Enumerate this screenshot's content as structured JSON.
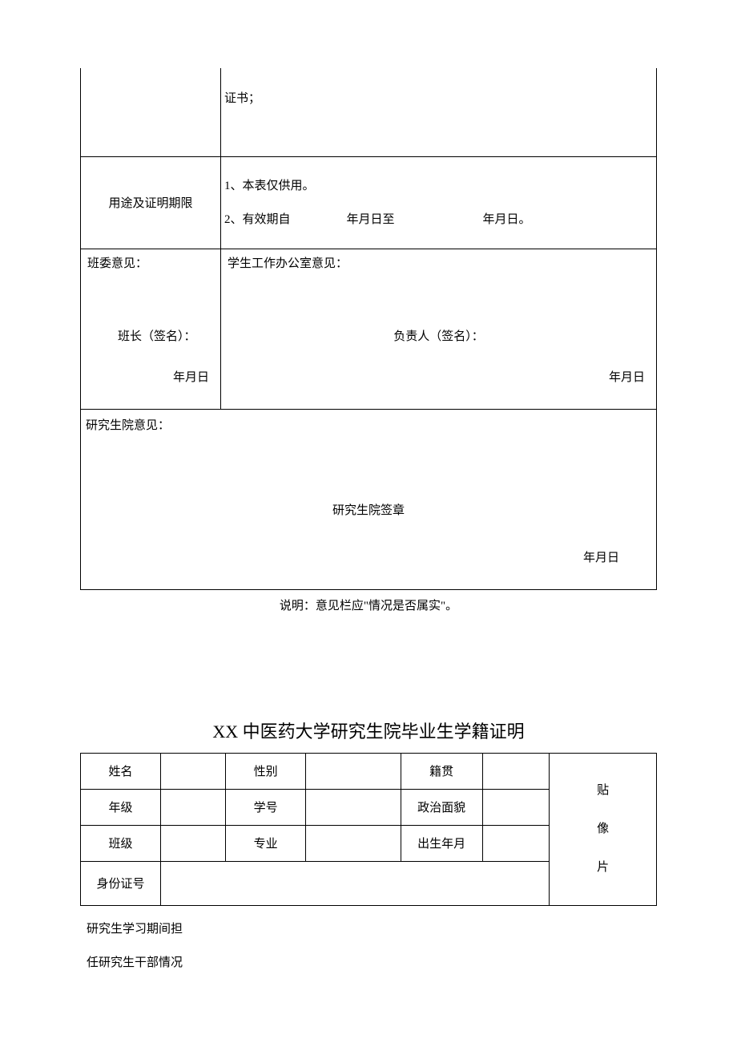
{
  "table1": {
    "row1_label": "",
    "row1_value": "证书；",
    "row2_label": "用途及证明期限",
    "row2_line1": "1、本表仅供用。",
    "row2_line2_a": "2、有效期自",
    "row2_line2_b": "年月日至",
    "row2_line2_c": "年月日。",
    "op_left_title": "班委意见：",
    "op_left_sign": "班长（签名）：",
    "op_left_date": "年月日",
    "op_right_title": "学生工作办公室意见：",
    "op_right_sign": "负责人（签名）：",
    "op_right_date": "年月日",
    "op_full_title": "研究生院意见：",
    "op_full_sign": "研究生院签章",
    "op_full_date": "年月日"
  },
  "note": "说明：意见栏应\"情况是否属实\"。",
  "title2": "XX 中医药大学研究生院毕业生学籍证明",
  "table2": {
    "r1c1": "姓名",
    "r1c2": "",
    "r1c3": "性别",
    "r1c4": "",
    "r1c5": "籍贯",
    "r1c6": "",
    "r2c1": "年级",
    "r2c2": "",
    "r2c3": "学号",
    "r2c4": "",
    "r2c5": "政治面貌",
    "r2c6": "",
    "r3c1": "班级",
    "r3c2": "",
    "r3c3": "专业",
    "r3c4": "",
    "r3c5": "出生年月",
    "r3c6": "",
    "r4c1": "身份证号",
    "r4c2": "",
    "photo_l1": "贴",
    "photo_l2": "像",
    "photo_l3": "片"
  },
  "below_line1": "研究生学习期间担",
  "below_line2": "任研究生干部情况"
}
